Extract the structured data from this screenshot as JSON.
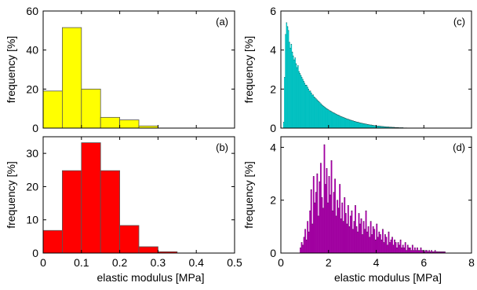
{
  "chart_data": [
    {
      "type": "bar",
      "panel_label": "(a)",
      "color": "#ffff00",
      "ylabel": "frequency [%]",
      "xlabel": "",
      "xlim": [
        0,
        0.5
      ],
      "ylim": [
        0,
        60
      ],
      "xticks": [],
      "yticks": [
        "0",
        "20",
        "40",
        "60"
      ],
      "bin_edges": [
        0.0,
        0.05,
        0.1,
        0.15,
        0.2,
        0.25,
        0.3
      ],
      "values": [
        19,
        51.5,
        20,
        5.5,
        4.2,
        1.1
      ]
    },
    {
      "type": "bar",
      "panel_label": "(b)",
      "color": "#ff0000",
      "ylabel": "frequency [%]",
      "xlabel": "elastic modulus [MPa]",
      "xlim": [
        0,
        0.5
      ],
      "ylim": [
        0,
        35
      ],
      "xticks": [
        "0",
        "0.1",
        "0.2",
        "0.3",
        "0.4",
        "0.5"
      ],
      "yticks": [
        "0",
        "10",
        "20",
        "30"
      ],
      "bin_edges": [
        0.0,
        0.05,
        0.1,
        0.15,
        0.2,
        0.25,
        0.3,
        0.35
      ],
      "values": [
        6.8,
        24.8,
        33.2,
        24.8,
        8.3,
        1.9,
        0.4
      ]
    },
    {
      "type": "bar",
      "panel_label": "(c)",
      "color": "#00c0c0",
      "ylabel": "frequency [%]",
      "xlabel": "",
      "xlim": [
        0,
        8
      ],
      "ylim": [
        0,
        6
      ],
      "xticks": [],
      "yticks": [
        "0",
        "2",
        "4",
        "6"
      ],
      "bin_start": 0.1,
      "bin_width": 0.04,
      "values": [
        0.3,
        2.6,
        4.8,
        5.4,
        5.2,
        5.0,
        4.4,
        4.1,
        4.3,
        3.9,
        3.7,
        3.5,
        3.6,
        3.3,
        3.1,
        3.2,
        2.9,
        2.8,
        2.7,
        2.6,
        2.5,
        2.4,
        2.3,
        2.2,
        2.2,
        2.1,
        2.0,
        1.9,
        1.9,
        1.8,
        1.7,
        1.7,
        1.6,
        1.55,
        1.5,
        1.45,
        1.4,
        1.35,
        1.3,
        1.25,
        1.2,
        1.15,
        1.12,
        1.08,
        1.04,
        1.0,
        0.97,
        0.94,
        0.9,
        0.88,
        0.85,
        0.82,
        0.79,
        0.77,
        0.74,
        0.72,
        0.69,
        0.67,
        0.65,
        0.62,
        0.6,
        0.58,
        0.56,
        0.54,
        0.52,
        0.5,
        0.48,
        0.46,
        0.45,
        0.43,
        0.41,
        0.4,
        0.38,
        0.37,
        0.35,
        0.34,
        0.32,
        0.31,
        0.3,
        0.29,
        0.27,
        0.26,
        0.25,
        0.24,
        0.23,
        0.22,
        0.21,
        0.2,
        0.19,
        0.18,
        0.17,
        0.16,
        0.16,
        0.15,
        0.14,
        0.13,
        0.13,
        0.12,
        0.11,
        0.11,
        0.1,
        0.1,
        0.09,
        0.09,
        0.08,
        0.08,
        0.07,
        0.07,
        0.06,
        0.06,
        0.06,
        0.05,
        0.05,
        0.05,
        0.04,
        0.04,
        0.04,
        0.03,
        0.03,
        0.03,
        0.03,
        0.02,
        0.02,
        0.02,
        0.02,
        0.02,
        0.01,
        0.01,
        0.01,
        0.01
      ]
    },
    {
      "type": "bar",
      "panel_label": "(d)",
      "color": "#a000a0",
      "ylabel": "frequency [%]",
      "xlabel": "elastic modulus [MPa]",
      "xlim": [
        0,
        8
      ],
      "ylim": [
        0,
        4.4
      ],
      "xticks": [
        "0",
        "2",
        "4",
        "6",
        "8"
      ],
      "yticks": [
        "0",
        "2",
        "4"
      ],
      "bin_start": 0.8,
      "bin_width": 0.05,
      "values": [
        0.2,
        0.4,
        0.3,
        0.6,
        0.9,
        0.5,
        1.2,
        0.8,
        1.6,
        2.4,
        1.1,
        2.9,
        1.9,
        2.3,
        3.0,
        1.4,
        2.7,
        3.4,
        2.1,
        1.7,
        4.1,
        2.6,
        3.2,
        1.9,
        2.9,
        2.2,
        3.5,
        1.6,
        2.3,
        2.8,
        1.4,
        2.0,
        1.7,
        2.6,
        1.3,
        1.9,
        1.2,
        2.1,
        1.5,
        1.1,
        1.8,
        1.0,
        1.4,
        1.6,
        0.9,
        1.2,
        1.8,
        1.0,
        0.8,
        1.5,
        1.1,
        1.3,
        0.7,
        1.2,
        0.9,
        1.6,
        0.8,
        1.0,
        0.6,
        1.2,
        0.7,
        1.0,
        0.9,
        0.5,
        1.1,
        0.6,
        0.8,
        0.7,
        0.5,
        0.9,
        0.4,
        0.7,
        0.6,
        0.3,
        0.8,
        0.4,
        0.5,
        0.6,
        0.3,
        0.5,
        0.4,
        0.2,
        0.4,
        0.3,
        0.5,
        0.2,
        0.3,
        0.2,
        0.4,
        0.1,
        0.3,
        0.2,
        0.2,
        0.1,
        0.3,
        0.1,
        0.2,
        0.1,
        0.2,
        0.1,
        0.1,
        0.2,
        0.1,
        0.1,
        0.05,
        0.1,
        0.1,
        0.05,
        0.1,
        0.05,
        0.1,
        0.05,
        0.05,
        0.1,
        0.05,
        0.05,
        0.05,
        0.05,
        0.05,
        0.05,
        0.05,
        0.05
      ]
    }
  ]
}
